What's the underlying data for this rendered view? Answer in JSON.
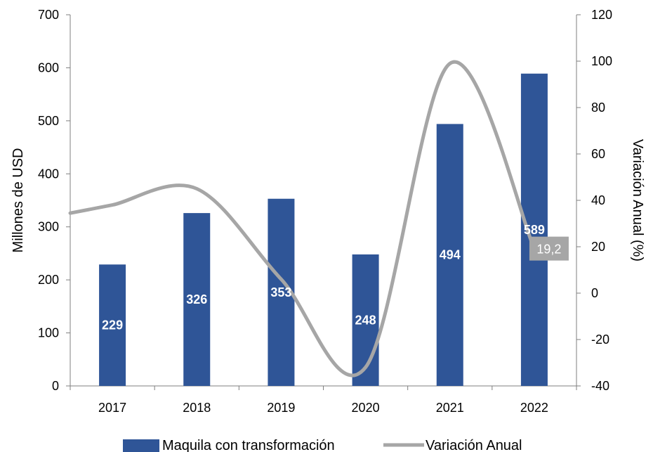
{
  "chart_data": {
    "type": "bar",
    "categories": [
      "2017",
      "2018",
      "2019",
      "2020",
      "2021",
      "2022"
    ],
    "series": [
      {
        "name": "Maquila con transformación",
        "type": "bar",
        "axis": "left",
        "values": [
          229,
          326,
          353,
          248,
          494,
          589
        ],
        "labels": [
          "229",
          "326",
          "353",
          "248",
          "494",
          "589"
        ],
        "color": "#2f5597"
      },
      {
        "name": "Variación Anual",
        "type": "line",
        "axis": "right",
        "smooth": true,
        "values": [
          38,
          45,
          6,
          -32,
          99,
          19.2
        ],
        "visible_labels": [
          null,
          null,
          null,
          null,
          null,
          "19,2"
        ],
        "color": "#a6a6a6"
      }
    ],
    "ylabel": "Millones de USD",
    "y2label": "Variación Anual (%)",
    "ylim": [
      0,
      700
    ],
    "yticks": [
      0,
      100,
      200,
      300,
      400,
      500,
      600,
      700
    ],
    "y2lim": [
      -40,
      120
    ],
    "y2ticks": [
      -40,
      -20,
      0,
      20,
      40,
      60,
      80,
      100,
      120
    ],
    "legend_position": "bottom",
    "grid": false
  }
}
